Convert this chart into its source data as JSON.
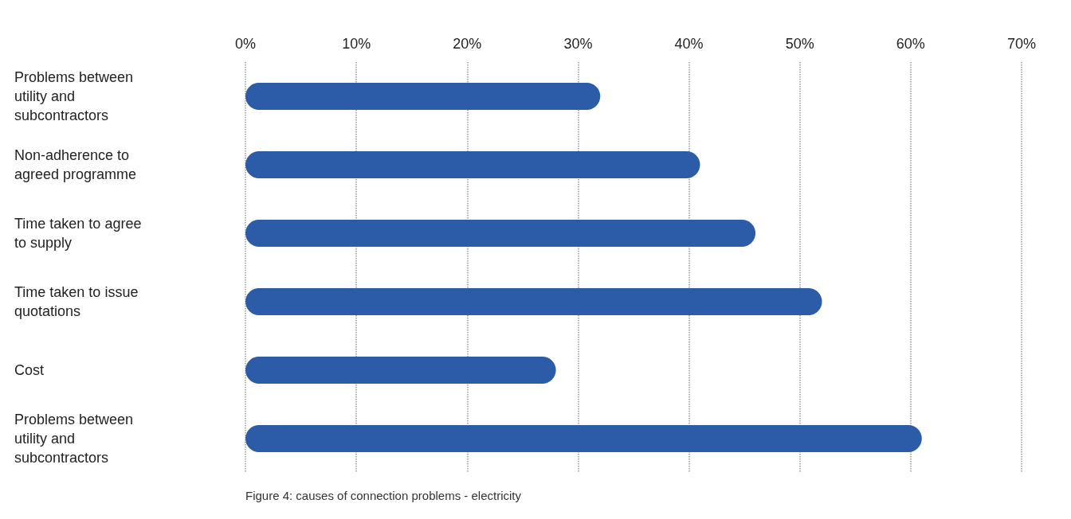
{
  "chart_data": {
    "type": "bar",
    "orientation": "horizontal",
    "categories": [
      "Problems between utility and subcontractors",
      "Non-adherence to agreed programme",
      "Time taken to agree to supply",
      "Time taken to issue quotations",
      "Cost",
      "Problems between utility and subcontractors"
    ],
    "values": [
      32,
      41,
      46,
      52,
      28,
      61
    ],
    "color": "#2c5ba8",
    "xlim": [
      0,
      70
    ],
    "xticks": [
      {
        "value": 0,
        "label": "0%"
      },
      {
        "value": 10,
        "label": "10%"
      },
      {
        "value": 20,
        "label": "20%"
      },
      {
        "value": 30,
        "label": "30%"
      },
      {
        "value": 40,
        "label": "40%"
      },
      {
        "value": 50,
        "label": "50%"
      },
      {
        "value": 60,
        "label": "60%"
      },
      {
        "value": 70,
        "label": "70%"
      }
    ],
    "grid": "x",
    "annotations": [
      "Figure 4: causes of connection problems - electricity"
    ]
  }
}
